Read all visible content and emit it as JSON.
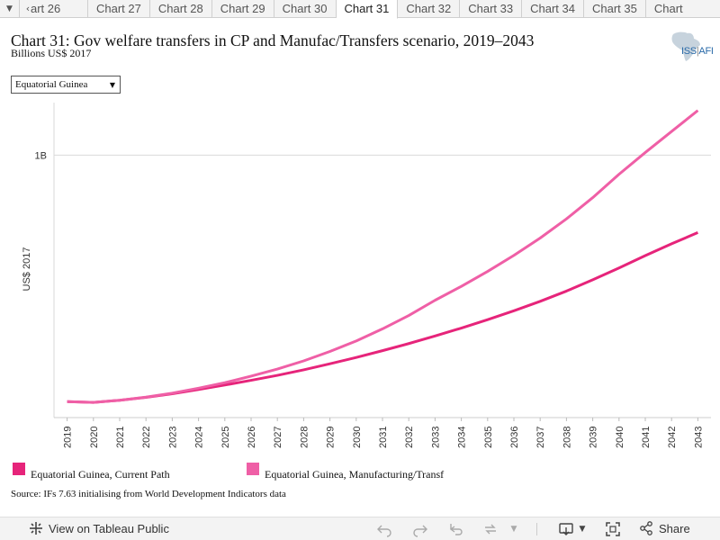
{
  "tabs": {
    "items": [
      "art 26",
      "Chart 27",
      "Chart 28",
      "Chart 29",
      "Chart 30",
      "Chart 31",
      "Chart 32",
      "Chart 33",
      "Chart 34",
      "Chart 35",
      "Chart"
    ],
    "active_index": 5
  },
  "header": {
    "title": "Chart 31: Gov welfare transfers in CP and Manufac/Transfers scenario, 2019–2043",
    "subtitle": "Billions US$ 2017",
    "logo_text_left": "ISS",
    "logo_text_sep": "|",
    "logo_text_right": "AFI"
  },
  "filter": {
    "selected": "Equatorial Guinea"
  },
  "chart_data": {
    "type": "line",
    "title": "Chart 31: Gov welfare transfers in CP and Manufac/Transfers scenario, 2019–2043",
    "ylabel": "US$ 2017",
    "xlabel": "",
    "x": [
      2019,
      2020,
      2021,
      2022,
      2023,
      2024,
      2025,
      2026,
      2027,
      2028,
      2029,
      2030,
      2031,
      2032,
      2033,
      2034,
      2035,
      2036,
      2037,
      2038,
      2039,
      2040,
      2041,
      2042,
      2043
    ],
    "y_ticks": [
      {
        "value": 1.0,
        "label": "1B"
      }
    ],
    "ylim": [
      0.0,
      1.2
    ],
    "grid": true,
    "legend_position": "bottom",
    "series": [
      {
        "name": "Equatorial Guinea, Current Path",
        "color": "#e6247a",
        "values": [
          0.061,
          0.058,
          0.066,
          0.077,
          0.091,
          0.107,
          0.124,
          0.142,
          0.161,
          0.182,
          0.205,
          0.229,
          0.255,
          0.282,
          0.311,
          0.341,
          0.373,
          0.407,
          0.443,
          0.482,
          0.525,
          0.57,
          0.617,
          0.662,
          0.705
        ]
      },
      {
        "name": "Equatorial Guinea, Manufacturing/Transf",
        "color": "#ef5fa6",
        "values": [
          0.061,
          0.058,
          0.066,
          0.078,
          0.093,
          0.112,
          0.133,
          0.158,
          0.185,
          0.216,
          0.252,
          0.292,
          0.338,
          0.389,
          0.447,
          0.5,
          0.557,
          0.618,
          0.684,
          0.757,
          0.838,
          0.927,
          1.01,
          1.09,
          1.17
        ]
      }
    ]
  },
  "legend": {
    "items": [
      {
        "label": "Equatorial Guinea, Current Path",
        "color": "#e6247a"
      },
      {
        "label": "Equatorial Guinea, Manufacturing/Transf",
        "color": "#ef5fa6"
      }
    ]
  },
  "footer": {
    "source": "Source: IFs 7.63 initialising from World Development Indicators data"
  },
  "toolbar": {
    "view_label": "View on Tableau Public",
    "share_label": "Share",
    "icons": [
      "undo-icon",
      "redo-icon",
      "revert-icon",
      "refresh-icon",
      "download-icon",
      "fullscreen-icon",
      "share-icon"
    ]
  }
}
